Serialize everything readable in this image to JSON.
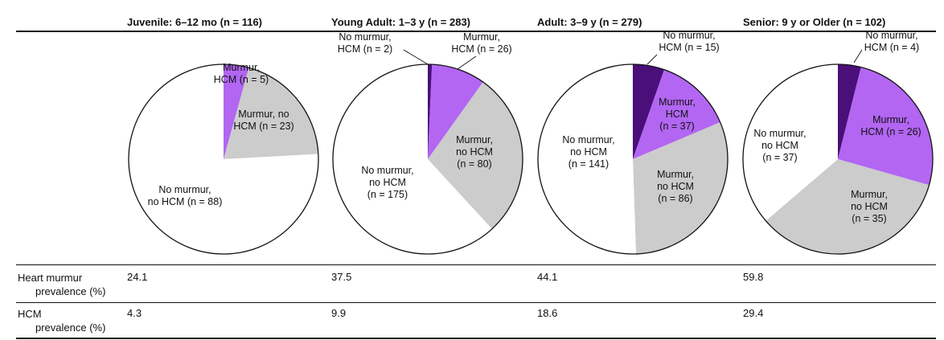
{
  "colors": {
    "murmur_hcm": "#b266f2",
    "murmur_no_hcm": "#cccccc",
    "no_murmur_hcm": "#4a0f78",
    "no_murmur_no_hcm": "#ffffff",
    "outline": "#111111"
  },
  "rows": {
    "murmur_label_1": "Heart murmur",
    "murmur_label_2": "prevalence (%)",
    "hcm_label_1": "HCM",
    "hcm_label_2": "prevalence (%)"
  },
  "chart_data": [
    {
      "type": "pie",
      "title": "Juvenile: 6–12 mo (n = 116)",
      "slices": [
        {
          "key": "no_murmur_hcm",
          "value": 0,
          "label": ""
        },
        {
          "key": "murmur_hcm",
          "value": 5,
          "label": "Murmur,|HCM (n = 5)"
        },
        {
          "key": "murmur_no_hcm",
          "value": 23,
          "label": "Murmur, no|HCM (n = 23)"
        },
        {
          "key": "no_murmur_no_hcm",
          "value": 88,
          "label": "No murmur,|no HCM (n = 88)"
        }
      ],
      "heart_murmur_prevalence": "24.1",
      "hcm_prevalence": "4.3"
    },
    {
      "type": "pie",
      "title": "Young Adult: 1–3 y (n = 283)",
      "slices": [
        {
          "key": "no_murmur_hcm",
          "value": 2,
          "label": "No murmur,|HCM (n = 2)"
        },
        {
          "key": "murmur_hcm",
          "value": 26,
          "label": "Murmur,|HCM (n = 26)"
        },
        {
          "key": "murmur_no_hcm",
          "value": 80,
          "label": "Murmur,|no HCM|(n = 80)"
        },
        {
          "key": "no_murmur_no_hcm",
          "value": 175,
          "label": "No murmur,|no HCM|(n = 175)"
        }
      ],
      "heart_murmur_prevalence": "37.5",
      "hcm_prevalence": "9.9"
    },
    {
      "type": "pie",
      "title": "Adult: 3–9 y (n = 279)",
      "slices": [
        {
          "key": "no_murmur_hcm",
          "value": 15,
          "label": "No murmur,|HCM (n = 15)"
        },
        {
          "key": "murmur_hcm",
          "value": 37,
          "label": "Murmur,|HCM|(n = 37)"
        },
        {
          "key": "murmur_no_hcm",
          "value": 86,
          "label": "Murmur,|no HCM|(n = 86)"
        },
        {
          "key": "no_murmur_no_hcm",
          "value": 141,
          "label": "No murmur,|no HCM|(n = 141)"
        }
      ],
      "heart_murmur_prevalence": "44.1",
      "hcm_prevalence": "18.6"
    },
    {
      "type": "pie",
      "title": "Senior: 9 y or Older (n = 102)",
      "slices": [
        {
          "key": "no_murmur_hcm",
          "value": 4,
          "label": "No murmur,|HCM (n = 4)"
        },
        {
          "key": "murmur_hcm",
          "value": 26,
          "label": "Murmur,|HCM (n = 26)"
        },
        {
          "key": "murmur_no_hcm",
          "value": 35,
          "label": "Murmur,|no HCM|(n = 35)"
        },
        {
          "key": "no_murmur_no_hcm",
          "value": 37,
          "label": "No murmur,|no HCM|(n = 37)"
        }
      ],
      "heart_murmur_prevalence": "59.8",
      "hcm_prevalence": "29.4"
    }
  ]
}
